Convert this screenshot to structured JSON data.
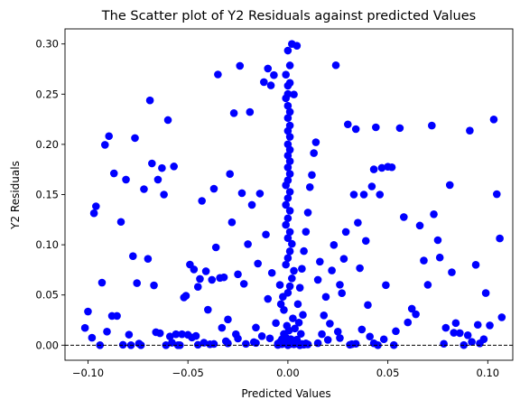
{
  "chart_data": {
    "type": "scatter",
    "title": "The Scatter plot of Y2 Residuals against predicted Values",
    "xlabel": "Predicted Values",
    "ylabel": "Y2 Residuals",
    "xlim": [
      -0.1115,
      0.1125
    ],
    "ylim": [
      -0.015,
      0.315
    ],
    "xticks": [
      -0.1,
      -0.05,
      0.0,
      0.05,
      0.1
    ],
    "xtick_labels": [
      "−0.10",
      "−0.05",
      "0.00",
      "0.05",
      "0.10"
    ],
    "yticks": [
      0.0,
      0.05,
      0.1,
      0.15,
      0.2,
      0.25,
      0.3
    ],
    "ytick_labels": [
      "0.00",
      "0.05",
      "0.10",
      "0.15",
      "0.20",
      "0.25",
      "0.30"
    ],
    "grid": false,
    "point_color": "#0000ff",
    "reference_line": {
      "y": 0.0,
      "style": "dashed",
      "color": "#000000"
    },
    "points": [
      [
        -0.1015,
        0.0172
      ],
      [
        -0.1,
        0.0335
      ],
      [
        -0.098,
        0.0074
      ],
      [
        -0.097,
        0.1314
      ],
      [
        -0.096,
        0.1383
      ],
      [
        -0.094,
        0.0
      ],
      [
        -0.093,
        0.0623
      ],
      [
        -0.0915,
        0.1995
      ],
      [
        -0.0905,
        0.0135
      ],
      [
        -0.0895,
        0.2082
      ],
      [
        -0.088,
        0.0291
      ],
      [
        -0.087,
        0.1711
      ],
      [
        -0.0855,
        0.0291
      ],
      [
        -0.0835,
        0.1228
      ],
      [
        -0.0825,
        0.0004
      ],
      [
        -0.081,
        0.1649
      ],
      [
        -0.0795,
        0.0105
      ],
      [
        -0.0785,
        0.0
      ],
      [
        -0.0775,
        0.0887
      ],
      [
        -0.0765,
        0.2063
      ],
      [
        -0.0755,
        0.0618
      ],
      [
        -0.0745,
        0.0016
      ],
      [
        -0.0735,
        0.0
      ],
      [
        -0.072,
        0.1554
      ],
      [
        -0.07,
        0.086
      ],
      [
        -0.069,
        0.2438
      ],
      [
        -0.068,
        0.181
      ],
      [
        -0.067,
        0.0596
      ],
      [
        -0.066,
        0.0129
      ],
      [
        -0.065,
        0.1649
      ],
      [
        -0.064,
        0.0119
      ],
      [
        -0.063,
        0.1764
      ],
      [
        -0.062,
        0.15
      ],
      [
        -0.061,
        0.0
      ],
      [
        -0.06,
        0.2242
      ],
      [
        -0.059,
        0.0087
      ],
      [
        -0.058,
        0.0025
      ],
      [
        -0.057,
        0.178
      ],
      [
        -0.056,
        0.0109
      ],
      [
        -0.055,
        0.0
      ],
      [
        -0.054,
        0.0
      ],
      [
        -0.053,
        0.0109
      ],
      [
        -0.052,
        0.0475
      ],
      [
        -0.051,
        0.0492
      ],
      [
        -0.05,
        0.0103
      ],
      [
        -0.049,
        0.0803
      ],
      [
        -0.048,
        0.0076
      ],
      [
        -0.047,
        0.0754
      ],
      [
        -0.046,
        0.0092
      ],
      [
        -0.045,
        0.0581
      ],
      [
        -0.044,
        0.066
      ],
      [
        -0.043,
        0.1437
      ],
      [
        -0.042,
        0.0025
      ],
      [
        -0.041,
        0.0736
      ],
      [
        -0.04,
        0.0353
      ],
      [
        -0.039,
        0.0009
      ],
      [
        -0.038,
        0.0651
      ],
      [
        -0.037,
        0.1558
      ],
      [
        -0.036,
        0.0974
      ],
      [
        -0.035,
        0.2696
      ],
      [
        -0.034,
        0.067
      ],
      [
        -0.033,
        0.0173
      ],
      [
        -0.032,
        0.0676
      ],
      [
        -0.031,
        0.004
      ],
      [
        -0.03,
        0.0256
      ],
      [
        -0.029,
        0.1705
      ],
      [
        -0.028,
        0.1224
      ],
      [
        -0.027,
        0.2311
      ],
      [
        -0.026,
        0.0109
      ],
      [
        -0.025,
        0.0706
      ],
      [
        -0.024,
        0.2782
      ],
      [
        -0.023,
        0.1514
      ],
      [
        -0.022,
        0.0611
      ],
      [
        -0.021,
        0.0013
      ],
      [
        -0.02,
        0.1006
      ],
      [
        -0.019,
        0.2322
      ],
      [
        -0.018,
        0.1397
      ],
      [
        -0.017,
        0.0031
      ],
      [
        -0.016,
        0.0175
      ],
      [
        -0.015,
        0.0813
      ],
      [
        -0.014,
        0.151
      ],
      [
        -0.013,
        0.009
      ],
      [
        -0.012,
        0.262
      ],
      [
        -0.011,
        0.1102
      ],
      [
        -0.01,
        0.0461
      ],
      [
        -0.009,
        0.0068
      ],
      [
        -0.008,
        0.072
      ],
      [
        -0.007,
        0.269
      ],
      [
        -0.006,
        0.022
      ],
      [
        -0.005,
        0.0016
      ],
      [
        -0.004,
        0.06
      ],
      [
        -0.003,
        0.001
      ],
      [
        -0.002,
        0.0351
      ],
      [
        -0.001,
        0.0025
      ],
      [
        0.0,
        0.0
      ],
      [
        0.001,
        0.001
      ],
      [
        0.002,
        0.004
      ],
      [
        0.003,
        0.0009
      ],
      [
        0.004,
        0.0022
      ],
      [
        0.005,
        0.0013
      ],
      [
        0.006,
        0.0
      ],
      [
        0.007,
        0.0012
      ],
      [
        0.008,
        0.0005
      ],
      [
        0.009,
        0.0018
      ],
      [
        0.01,
        0.0008
      ],
      [
        -0.005,
        0.0002
      ],
      [
        -0.004,
        0.0031
      ],
      [
        -0.003,
        0.0059
      ],
      [
        -0.002,
        0.0112
      ],
      [
        -0.0015,
        0.0028
      ],
      [
        -0.001,
        0.0077
      ],
      [
        -0.0005,
        0.0194
      ],
      [
        0.0005,
        0.0146
      ],
      [
        0.0015,
        0.006
      ],
      [
        0.0025,
        0.0267
      ],
      [
        0.0035,
        0.0166
      ],
      [
        0.0045,
        0.0055
      ],
      [
        0.0055,
        0.0225
      ],
      [
        0.0065,
        0.0113
      ],
      [
        0.0075,
        0.0302
      ],
      [
        -0.0035,
        0.0409
      ],
      [
        -0.0025,
        0.0482
      ],
      [
        0.0,
        0.0522
      ],
      [
        0.001,
        0.0587
      ],
      [
        0.002,
        0.0665
      ],
      [
        0.003,
        0.0741
      ],
      [
        -0.001,
        0.0802
      ],
      [
        0.0,
        0.0868
      ],
      [
        0.001,
        0.0935
      ],
      [
        0.002,
        0.1009
      ],
      [
        0.0,
        0.1067
      ],
      [
        0.001,
        0.1128
      ],
      [
        -0.001,
        0.1198
      ],
      [
        0.0,
        0.1264
      ],
      [
        0.001,
        0.1339
      ],
      [
        -0.001,
        0.1397
      ],
      [
        0.0,
        0.1464
      ],
      [
        0.001,
        0.1527
      ],
      [
        -0.001,
        0.1593
      ],
      [
        0.0,
        0.1642
      ],
      [
        0.001,
        0.1706
      ],
      [
        0.0,
        0.177
      ],
      [
        0.001,
        0.1832
      ],
      [
        0.0,
        0.1889
      ],
      [
        0.001,
        0.1946
      ],
      [
        0.0,
        0.2001
      ],
      [
        0.001,
        0.2075
      ],
      [
        0.0,
        0.2134
      ],
      [
        0.001,
        0.2188
      ],
      [
        0.0,
        0.2263
      ],
      [
        0.001,
        0.2323
      ],
      [
        0.0,
        0.2384
      ],
      [
        -0.001,
        0.2459
      ],
      [
        0.0,
        0.2502
      ],
      [
        0.0,
        0.2584
      ],
      [
        -0.001,
        0.2694
      ],
      [
        0.001,
        0.2786
      ],
      [
        0.0,
        0.2934
      ],
      [
        0.002,
        0.3
      ],
      [
        0.0045,
        0.2982
      ],
      [
        -0.0085,
        0.2587
      ],
      [
        -0.01,
        0.2755
      ],
      [
        0.001,
        0.2612
      ],
      [
        0.003,
        0.2497
      ],
      [
        0.005,
        0.0409
      ],
      [
        0.006,
        0.0572
      ],
      [
        0.007,
        0.0761
      ],
      [
        0.008,
        0.0937
      ],
      [
        0.009,
        0.113
      ],
      [
        0.01,
        0.1321
      ],
      [
        0.011,
        0.1574
      ],
      [
        0.012,
        0.1695
      ],
      [
        0.013,
        0.1913
      ],
      [
        0.014,
        0.2021
      ],
      [
        0.015,
        0.0651
      ],
      [
        0.016,
        0.0832
      ],
      [
        0.017,
        0.011
      ],
      [
        0.018,
        0.0297
      ],
      [
        0.019,
        0.0481
      ],
      [
        0.02,
        0.0053
      ],
      [
        0.021,
        0.0215
      ],
      [
        0.022,
        0.0744
      ],
      [
        0.023,
        0.0998
      ],
      [
        0.024,
        0.2788
      ],
      [
        0.025,
        0.0135
      ],
      [
        0.026,
        0.0602
      ],
      [
        0.027,
        0.0518
      ],
      [
        0.028,
        0.086
      ],
      [
        0.029,
        0.1128
      ],
      [
        0.03,
        0.2199
      ],
      [
        0.031,
        0.0004
      ],
      [
        0.032,
        0.001
      ],
      [
        0.033,
        0.15
      ],
      [
        0.034,
        0.2152
      ],
      [
        0.035,
        0.122
      ],
      [
        0.036,
        0.0767
      ],
      [
        0.037,
        0.0156
      ],
      [
        0.038,
        0.15
      ],
      [
        0.039,
        0.1039
      ],
      [
        0.04,
        0.04
      ],
      [
        0.041,
        0.0086
      ],
      [
        0.042,
        0.1581
      ],
      [
        0.043,
        0.1751
      ],
      [
        0.044,
        0.217
      ],
      [
        0.045,
        0.0
      ],
      [
        0.046,
        0.15
      ],
      [
        0.047,
        0.1766
      ],
      [
        0.048,
        0.0059
      ],
      [
        0.049,
        0.0598
      ],
      [
        0.05,
        0.1777
      ],
      [
        0.052,
        0.1772
      ],
      [
        0.054,
        0.0139
      ],
      [
        0.056,
        0.2162
      ],
      [
        0.058,
        0.1276
      ],
      [
        0.06,
        0.0227
      ],
      [
        0.062,
        0.0363
      ],
      [
        0.064,
        0.0308
      ],
      [
        0.066,
        0.1191
      ],
      [
        0.068,
        0.0843
      ],
      [
        0.07,
        0.0601
      ],
      [
        0.072,
        0.2187
      ],
      [
        0.073,
        0.1304
      ],
      [
        0.075,
        0.1046
      ],
      [
        0.076,
        0.0873
      ],
      [
        0.078,
        0.0014
      ],
      [
        0.079,
        0.0173
      ],
      [
        0.081,
        0.1595
      ],
      [
        0.082,
        0.0726
      ],
      [
        0.083,
        0.0124
      ],
      [
        0.084,
        0.022
      ],
      [
        0.086,
        0.012
      ],
      [
        0.088,
        0.0001
      ],
      [
        0.09,
        0.0099
      ],
      [
        0.091,
        0.2137
      ],
      [
        0.092,
        0.0033
      ],
      [
        0.094,
        0.08
      ],
      [
        0.095,
        0.0203
      ],
      [
        0.096,
        0.0018
      ],
      [
        0.098,
        0.006
      ],
      [
        0.099,
        0.0519
      ],
      [
        0.101,
        0.0197
      ],
      [
        0.103,
        0.2248
      ],
      [
        0.1045,
        0.1504
      ],
      [
        0.106,
        0.1063
      ],
      [
        0.107,
        0.0278
      ],
      [
        -0.037,
        0.0012
      ],
      [
        -0.025,
        0.0066
      ],
      [
        -0.016,
        0.0022
      ],
      [
        0.015,
        0.002
      ],
      [
        0.026,
        0.0071
      ],
      [
        0.034,
        0.0014
      ],
      [
        -0.045,
        0.0004
      ],
      [
        0.053,
        0.0001
      ],
      [
        -0.03,
        0.0018
      ],
      [
        0.043,
        0.0019
      ]
    ]
  }
}
